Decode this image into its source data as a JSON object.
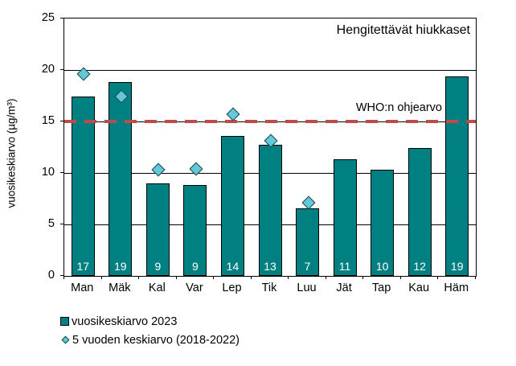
{
  "chart_data": {
    "type": "bar",
    "title": "Hengitettävät hiukkaset",
    "ylabel": "vuosikeskiarvo (µg/m³)",
    "xlabel": "",
    "ylim": [
      0,
      25
    ],
    "yticks": [
      0,
      5,
      10,
      15,
      20,
      25
    ],
    "grid": "horizontal",
    "legend_position": "bottom-left",
    "categories": [
      "Man",
      "Mäk",
      "Kal",
      "Var",
      "Lep",
      "Tik",
      "Luu",
      "Jät",
      "Tap",
      "Kau",
      "Häm"
    ],
    "series": [
      {
        "name": "vuosikeskiarvo 2023",
        "type": "bar",
        "color": "#008080",
        "border_color": "#000000",
        "values": [
          17.4,
          18.8,
          9.0,
          8.8,
          13.6,
          12.7,
          6.6,
          11.3,
          10.3,
          12.4,
          19.4
        ],
        "bar_labels": [
          "17",
          "19",
          "9",
          "9",
          "14",
          "13",
          "7",
          "11",
          "10",
          "12",
          "19"
        ],
        "bar_label_color": "#FFFFFF"
      },
      {
        "name": "5 vuoden keskiarvo (2018-2022)",
        "type": "scatter",
        "marker": "diamond",
        "color": "#63C8D7",
        "border_color": "#17414A",
        "values": [
          19.7,
          17.5,
          10.4,
          10.5,
          15.8,
          13.2,
          7.2,
          null,
          null,
          null,
          null
        ]
      }
    ],
    "reference_line": {
      "label": "WHO:n ohjearvo",
      "value": 15,
      "color": "#BE4B48",
      "style": "dashed"
    }
  }
}
